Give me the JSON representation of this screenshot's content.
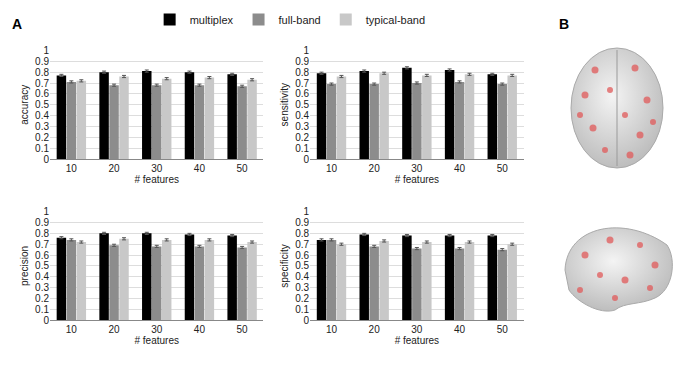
{
  "panel_labels": [
    "A",
    "B"
  ],
  "chart_data": [
    {
      "type": "bar",
      "x_label": "# features",
      "y_label": "accuracy",
      "categories": [
        "10",
        "20",
        "30",
        "40",
        "50"
      ],
      "ylim": [
        0,
        1
      ],
      "yticks": [
        0,
        0.1,
        0.2,
        0.3,
        0.4,
        0.5,
        0.6,
        0.7,
        0.8,
        0.9,
        1
      ],
      "grid": true,
      "legend": "top",
      "series": [
        {
          "name": "multiplex",
          "color": "#000000",
          "values": [
            0.77,
            0.8,
            0.81,
            0.8,
            0.78
          ],
          "errors": [
            0.01,
            0.01,
            0.01,
            0.01,
            0.01
          ]
        },
        {
          "name": "full-band",
          "color": "#8c8c8c",
          "values": [
            0.71,
            0.68,
            0.68,
            0.68,
            0.67
          ],
          "errors": [
            0.01,
            0.01,
            0.01,
            0.01,
            0.01
          ]
        },
        {
          "name": "typical-band",
          "color": "#c8c8c8",
          "values": [
            0.72,
            0.76,
            0.74,
            0.75,
            0.73
          ],
          "errors": [
            0.01,
            0.01,
            0.01,
            0.01,
            0.01
          ]
        }
      ]
    },
    {
      "type": "bar",
      "x_label": "# features",
      "y_label": "sensitivity",
      "categories": [
        "10",
        "20",
        "30",
        "40",
        "50"
      ],
      "ylim": [
        0,
        1
      ],
      "yticks": [
        0,
        0.1,
        0.2,
        0.3,
        0.4,
        0.5,
        0.6,
        0.7,
        0.8,
        0.9,
        1
      ],
      "grid": true,
      "series": [
        {
          "name": "multiplex",
          "color": "#000000",
          "values": [
            0.79,
            0.81,
            0.84,
            0.82,
            0.78
          ],
          "errors": [
            0.01,
            0.01,
            0.01,
            0.01,
            0.01
          ]
        },
        {
          "name": "full-band",
          "color": "#8c8c8c",
          "values": [
            0.69,
            0.69,
            0.7,
            0.71,
            0.69
          ],
          "errors": [
            0.01,
            0.01,
            0.01,
            0.01,
            0.01
          ]
        },
        {
          "name": "typical-band",
          "color": "#c8c8c8",
          "values": [
            0.76,
            0.79,
            0.77,
            0.78,
            0.77
          ],
          "errors": [
            0.01,
            0.01,
            0.01,
            0.01,
            0.01
          ]
        }
      ]
    },
    {
      "type": "bar",
      "x_label": "# features",
      "y_label": "precision",
      "categories": [
        "10",
        "20",
        "30",
        "40",
        "50"
      ],
      "ylim": [
        0,
        1
      ],
      "yticks": [
        0,
        0.1,
        0.2,
        0.3,
        0.4,
        0.5,
        0.6,
        0.7,
        0.8,
        0.9,
        1
      ],
      "grid": true,
      "series": [
        {
          "name": "multiplex",
          "color": "#000000",
          "values": [
            0.76,
            0.8,
            0.8,
            0.79,
            0.78
          ],
          "errors": [
            0.01,
            0.01,
            0.01,
            0.01,
            0.01
          ]
        },
        {
          "name": "full-band",
          "color": "#8c8c8c",
          "values": [
            0.74,
            0.69,
            0.68,
            0.68,
            0.67
          ],
          "errors": [
            0.01,
            0.01,
            0.01,
            0.01,
            0.01
          ]
        },
        {
          "name": "typical-band",
          "color": "#c8c8c8",
          "values": [
            0.72,
            0.75,
            0.74,
            0.74,
            0.72
          ],
          "errors": [
            0.01,
            0.01,
            0.01,
            0.01,
            0.01
          ]
        }
      ]
    },
    {
      "type": "bar",
      "x_label": "# features",
      "y_label": "specificity",
      "categories": [
        "10",
        "20",
        "30",
        "40",
        "50"
      ],
      "ylim": [
        0,
        1
      ],
      "yticks": [
        0,
        0.1,
        0.2,
        0.3,
        0.4,
        0.5,
        0.6,
        0.7,
        0.8,
        0.9,
        1
      ],
      "grid": true,
      "series": [
        {
          "name": "multiplex",
          "color": "#000000",
          "values": [
            0.74,
            0.79,
            0.78,
            0.78,
            0.78
          ],
          "errors": [
            0.01,
            0.01,
            0.01,
            0.01,
            0.01
          ]
        },
        {
          "name": "full-band",
          "color": "#8c8c8c",
          "values": [
            0.74,
            0.68,
            0.66,
            0.66,
            0.65
          ],
          "errors": [
            0.01,
            0.01,
            0.01,
            0.01,
            0.01
          ]
        },
        {
          "name": "typical-band",
          "color": "#c8c8c8",
          "values": [
            0.7,
            0.73,
            0.72,
            0.72,
            0.7
          ],
          "errors": [
            0.01,
            0.01,
            0.01,
            0.01,
            0.01
          ]
        }
      ]
    }
  ]
}
